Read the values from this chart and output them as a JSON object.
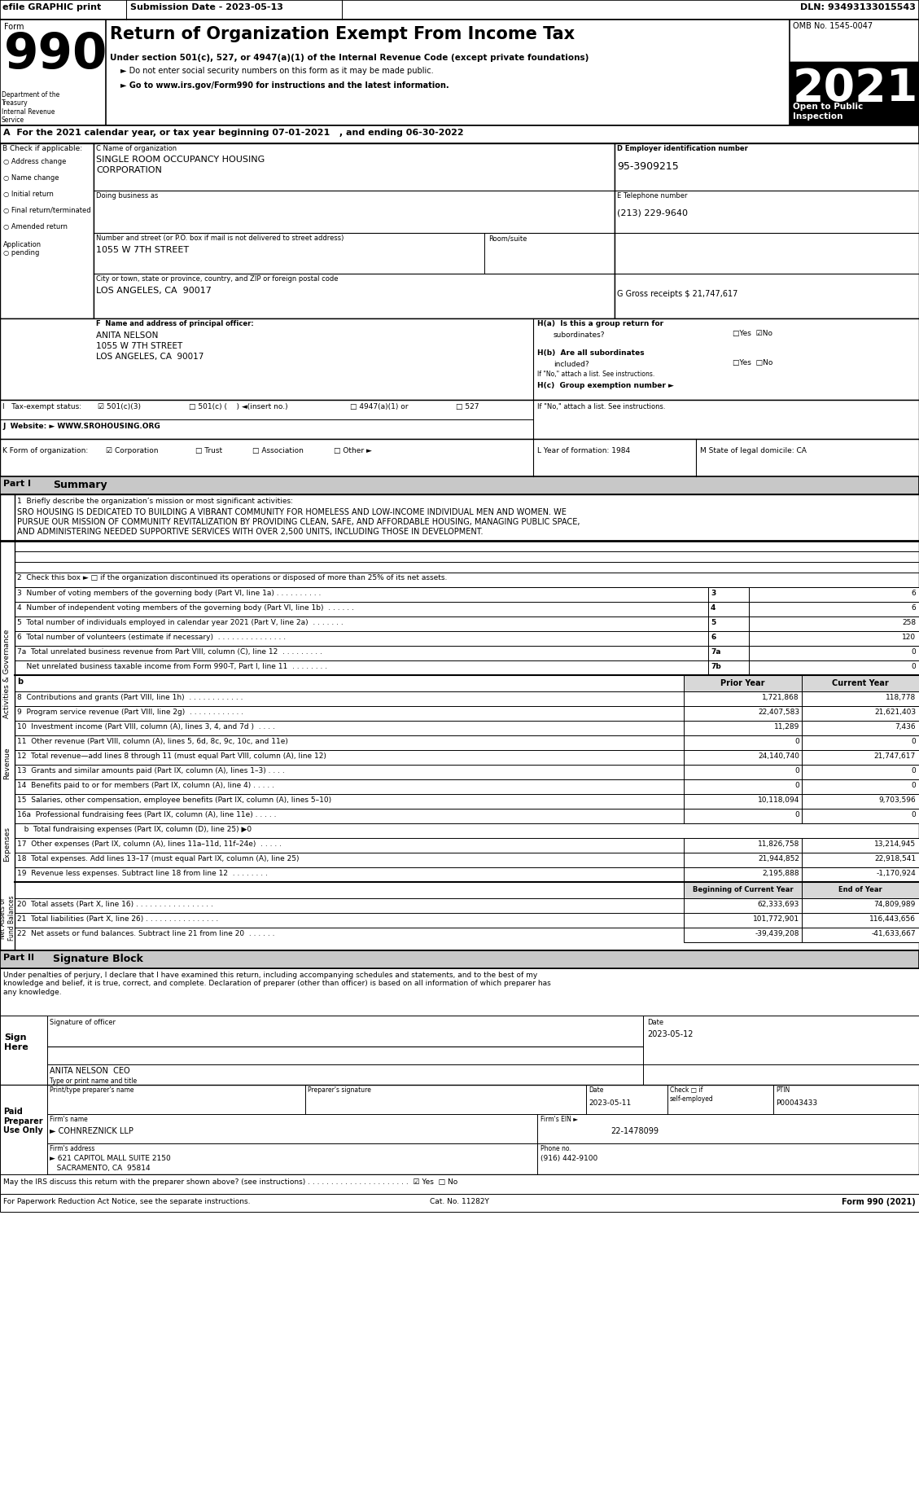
{
  "form_number": "990",
  "main_title": "Return of Organization Exempt From Income Tax",
  "subtitle1": "Under section 501(c), 527, or 4947(a)(1) of the Internal Revenue Code (except private foundations)",
  "subtitle2": "► Do not enter social security numbers on this form as it may be made public.",
  "subtitle3": "► Go to www.irs.gov/Form990 for instructions and the latest information.",
  "omb": "OMB No. 1545-0047",
  "year": "2021",
  "tax_year_line": "A  For the 2021 calendar year, or tax year beginning 07-01-2021   , and ending 06-30-2022",
  "org_name_line1": "SINGLE ROOM OCCUPANCY HOUSING",
  "org_name_line2": "CORPORATION",
  "ein": "95-3909215",
  "address": "1055 W 7TH STREET",
  "phone": "(213) 229-9640",
  "city": "LOS ANGELES, CA  90017",
  "gross_receipts": "G Gross receipts $ 21,747,617",
  "principal_name": "ANITA NELSON",
  "principal_addr1": "1055 W 7TH STREET",
  "principal_addr2": "LOS ANGELES, CA  90017",
  "website": "WWW.SROHOUSING.ORG",
  "year_formation": "1984",
  "state_domicile": "CA",
  "line1_label": "1  Briefly describe the organization’s mission or most significant activities:",
  "line1_text1": "SRO HOUSING IS DEDICATED TO BUILDING A VIBRANT COMMUNITY FOR HOMELESS AND LOW-INCOME INDIVIDUAL MEN AND WOMEN. WE",
  "line1_text2": "PURSUE OUR MISSION OF COMMUNITY REVITALIZATION BY PROVIDING CLEAN, SAFE, AND AFFORDABLE HOUSING, MANAGING PUBLIC SPACE,",
  "line1_text3": "AND ADMINISTERING NEEDED SUPPORTIVE SERVICES WITH OVER 2,500 UNITS, INCLUDING THOSE IN DEVELOPMENT.",
  "line2": "2  Check this box ► □ if the organization discontinued its operations or disposed of more than 25% of its net assets.",
  "line3": "3  Number of voting members of the governing body (Part VI, line 1a) . . . . . . . . . .",
  "line4": "4  Number of independent voting members of the governing body (Part VI, line 1b)  . . . . . .",
  "line5": "5  Total number of individuals employed in calendar year 2021 (Part V, line 2a)  . . . . . . .",
  "line6": "6  Total number of volunteers (estimate if necessary)  . . . . . . . . . . . . . . .",
  "line7a": "7a  Total unrelated business revenue from Part VIII, column (C), line 12  . . . . . . . . .",
  "line7b": "    Net unrelated business taxable income from Form 990-T, Part I, line 11  . . . . . . . .",
  "prior_year_header": "Prior Year",
  "curr_year_header": "Current Year",
  "line8": "8  Contributions and grants (Part VIII, line 1h)  . . . . . . . . . . . .",
  "line9": "9  Program service revenue (Part VIII, line 2g)  . . . . . . . . . . . .",
  "line10": "10  Investment income (Part VIII, column (A), lines 3, 4, and 7d )  . . . .",
  "line11": "11  Other revenue (Part VIII, column (A), lines 5, 6d, 8c, 9c, 10c, and 11e)",
  "line12": "12  Total revenue—add lines 8 through 11 (must equal Part VIII, column (A), line 12)",
  "line13": "13  Grants and similar amounts paid (Part IX, column (A), lines 1–3) . . . .",
  "line14": "14  Benefits paid to or for members (Part IX, column (A), line 4) . . . . .",
  "line15": "15  Salaries, other compensation, employee benefits (Part IX, column (A), lines 5–10)",
  "line16a": "16a  Professional fundraising fees (Part IX, column (A), line 11e) . . . . .",
  "line16b": "   b  Total fundraising expenses (Part IX, column (D), line 25) ▶0",
  "line17": "17  Other expenses (Part IX, column (A), lines 11a–11d, 11f–24e)  . . . . .",
  "line18": "18  Total expenses. Add lines 13–17 (must equal Part IX, column (A), line 25)",
  "line19": "19  Revenue less expenses. Subtract line 18 from line 12  . . . . . . . .",
  "line20": "20  Total assets (Part X, line 16) . . . . . . . . . . . . . . . . .",
  "line21": "21  Total liabilities (Part X, line 26) . . . . . . . . . . . . . . . .",
  "line22": "22  Net assets or fund balances. Subtract line 21 from line 20  . . . . . .",
  "beg_year_header": "Beginning of Current Year",
  "end_year_header": "End of Year",
  "line3_val": "6",
  "line4_val": "6",
  "line5_val": "258",
  "line6_val": "120",
  "line7a_val": "0",
  "line7b_val": "0",
  "line8_prior": "1,721,868",
  "line8_curr": "118,778",
  "line9_prior": "22,407,583",
  "line9_curr": "21,621,403",
  "line10_prior": "11,289",
  "line10_curr": "7,436",
  "line11_prior": "0",
  "line11_curr": "0",
  "line12_prior": "24,140,740",
  "line12_curr": "21,747,617",
  "line13_prior": "0",
  "line13_curr": "0",
  "line14_prior": "0",
  "line14_curr": "0",
  "line15_prior": "10,118,094",
  "line15_curr": "9,703,596",
  "line16a_prior": "0",
  "line16a_curr": "0",
  "line17_prior": "11,826,758",
  "line17_curr": "13,214,945",
  "line18_prior": "21,944,852",
  "line18_curr": "22,918,541",
  "line19_prior": "2,195,888",
  "line19_curr": "-1,170,924",
  "line20_beg": "62,333,693",
  "line20_end": "74,809,989",
  "line21_beg": "101,772,901",
  "line21_end": "116,443,656",
  "line22_beg": "-39,439,208",
  "line22_end": "-41,633,667",
  "sig_text": "Under penalties of perjury, I declare that I have examined this return, including accompanying schedules and statements, and to the best of my\nknowledge and belief, it is true, correct, and complete. Declaration of preparer (other than officer) is based on all information of which preparer has\nany knowledge.",
  "sig_date": "2023-05-12",
  "sig_name_title": "ANITA NELSON  CEO",
  "sig_title2": "Type or print name and title",
  "preparer_date": "2023-05-11",
  "preparer_ptin": "P00043433",
  "firm_name": "► COHNREZNICK LLP",
  "firm_ein": "22-1478099",
  "firm_addr1": "► 621 CAPITOL MALL SUITE 2150",
  "firm_addr2": "   SACRAMENTO, CA  95814",
  "firm_phone": "(916) 442-9100",
  "may_discuss": "May the IRS discuss this return with the preparer shown above? (see instructions) . . . . . . . . . . . . . . . . . . . . . .  ☑ Yes  □ No",
  "paperwork_notice": "For Paperwork Reduction Act Notice, see the separate instructions.",
  "cat_no": "Cat. No. 11282Y",
  "form_footer": "Form 990 (2021)"
}
